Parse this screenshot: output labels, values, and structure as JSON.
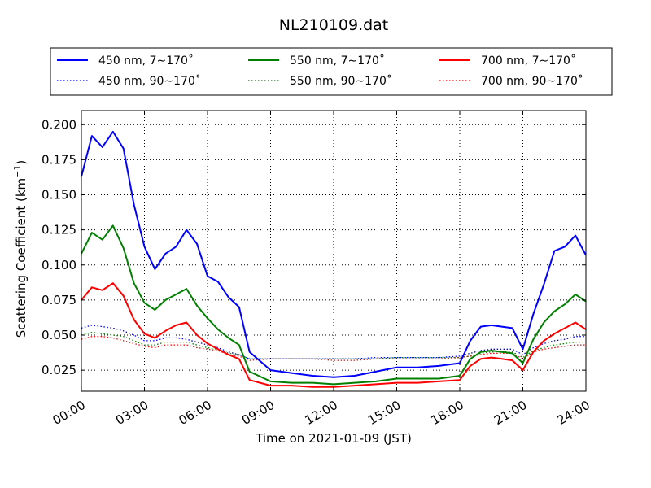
{
  "chart_data": {
    "type": "line",
    "title": "NL210109.dat",
    "xlabel": "Time on 2021-01-09 (JST)",
    "ylabel": "Scattering Coefficient (km",
    "ylabel_sup": "−1",
    "ylabel_close": ")",
    "xlim": [
      "2021-01-09T00:00",
      "2021-01-10T00:00"
    ],
    "ylim": [
      0.01,
      0.21
    ],
    "x_ticks": [
      "00:00",
      "03:00",
      "06:00",
      "09:00",
      "12:00",
      "15:00",
      "18:00",
      "21:00",
      "24:00"
    ],
    "y_ticks": [
      "0.025",
      "0.050",
      "0.075",
      "0.100",
      "0.125",
      "0.150",
      "0.175",
      "0.200"
    ],
    "grid": true,
    "legend_placement": "top",
    "x": [
      "00:00",
      "00:30",
      "01:00",
      "01:30",
      "02:00",
      "02:30",
      "03:00",
      "03:30",
      "04:00",
      "04:30",
      "05:00",
      "05:30",
      "06:00",
      "06:30",
      "07:00",
      "07:30",
      "08:00",
      "09:00",
      "10:00",
      "11:00",
      "12:00",
      "13:00",
      "14:00",
      "15:00",
      "16:00",
      "17:00",
      "18:00",
      "18:30",
      "19:00",
      "19:30",
      "20:00",
      "20:30",
      "21:00",
      "21:30",
      "22:00",
      "22:30",
      "23:00",
      "23:30",
      "24:00"
    ],
    "series": [
      {
        "name": "450 nm, 7∼170˚",
        "color": "#0000ff",
        "style": "solid",
        "values": [
          0.163,
          0.192,
          0.184,
          0.195,
          0.183,
          0.143,
          0.113,
          0.097,
          0.108,
          0.113,
          0.125,
          0.115,
          0.092,
          0.088,
          0.077,
          0.07,
          0.038,
          0.025,
          0.023,
          0.021,
          0.02,
          0.021,
          0.024,
          0.027,
          0.027,
          0.028,
          0.03,
          0.046,
          0.056,
          0.057,
          0.056,
          0.055,
          0.04,
          0.065,
          0.086,
          0.11,
          0.113,
          0.121,
          0.107
        ]
      },
      {
        "name": "550 nm, 7∼170˚",
        "color": "#008000",
        "style": "solid",
        "values": [
          0.108,
          0.123,
          0.118,
          0.128,
          0.112,
          0.087,
          0.073,
          0.068,
          0.075,
          0.079,
          0.083,
          0.071,
          0.062,
          0.054,
          0.048,
          0.043,
          0.024,
          0.017,
          0.016,
          0.016,
          0.015,
          0.016,
          0.017,
          0.019,
          0.019,
          0.019,
          0.021,
          0.033,
          0.038,
          0.039,
          0.038,
          0.037,
          0.03,
          0.047,
          0.059,
          0.067,
          0.072,
          0.079,
          0.074
        ]
      },
      {
        "name": "700 nm, 7∼170˚",
        "color": "#ff0000",
        "style": "solid",
        "values": [
          0.075,
          0.084,
          0.082,
          0.087,
          0.078,
          0.061,
          0.051,
          0.048,
          0.053,
          0.057,
          0.059,
          0.05,
          0.044,
          0.04,
          0.036,
          0.033,
          0.018,
          0.014,
          0.014,
          0.013,
          0.013,
          0.014,
          0.015,
          0.016,
          0.016,
          0.017,
          0.018,
          0.028,
          0.033,
          0.034,
          0.033,
          0.032,
          0.025,
          0.038,
          0.046,
          0.051,
          0.055,
          0.059,
          0.054
        ]
      },
      {
        "name": "450 nm, 90∼170˚",
        "color": "#0000ff",
        "style": "dotted",
        "values": [
          0.055,
          0.057,
          0.056,
          0.055,
          0.053,
          0.05,
          0.046,
          0.046,
          0.048,
          0.048,
          0.047,
          0.045,
          0.043,
          0.041,
          0.038,
          0.036,
          0.033,
          0.033,
          0.033,
          0.033,
          0.033,
          0.033,
          0.034,
          0.034,
          0.034,
          0.034,
          0.035,
          0.037,
          0.039,
          0.04,
          0.04,
          0.04,
          0.036,
          0.041,
          0.044,
          0.046,
          0.047,
          0.049,
          0.049
        ]
      },
      {
        "name": "550 nm, 90∼170˚",
        "color": "#008000",
        "style": "dotted",
        "values": [
          0.05,
          0.052,
          0.051,
          0.05,
          0.049,
          0.046,
          0.043,
          0.043,
          0.045,
          0.045,
          0.045,
          0.043,
          0.041,
          0.04,
          0.037,
          0.036,
          0.033,
          0.033,
          0.033,
          0.033,
          0.033,
          0.033,
          0.033,
          0.034,
          0.034,
          0.034,
          0.034,
          0.035,
          0.037,
          0.038,
          0.038,
          0.038,
          0.034,
          0.039,
          0.041,
          0.043,
          0.044,
          0.045,
          0.045
        ]
      },
      {
        "name": "700 nm, 90∼170˚",
        "color": "#ff0000",
        "style": "dotted",
        "values": [
          0.047,
          0.049,
          0.049,
          0.048,
          0.046,
          0.044,
          0.042,
          0.041,
          0.043,
          0.043,
          0.043,
          0.041,
          0.04,
          0.039,
          0.036,
          0.035,
          0.032,
          0.033,
          0.033,
          0.033,
          0.032,
          0.032,
          0.033,
          0.033,
          0.033,
          0.033,
          0.034,
          0.035,
          0.036,
          0.037,
          0.037,
          0.037,
          0.033,
          0.038,
          0.04,
          0.041,
          0.042,
          0.043,
          0.043
        ]
      }
    ]
  }
}
